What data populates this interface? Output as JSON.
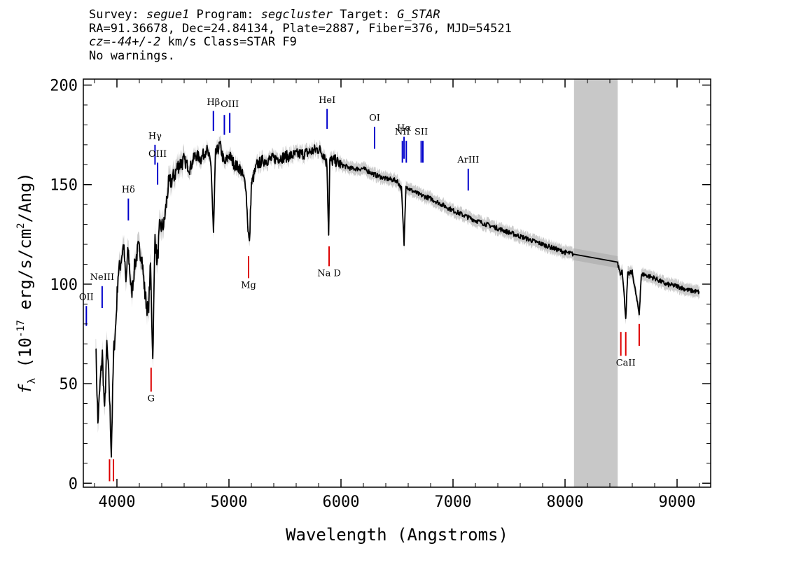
{
  "header": {
    "line1": {
      "survey_label": "Survey: ",
      "survey": "segue1",
      "program_label": " Program: ",
      "program": "segcluster",
      "target_label": " Target: ",
      "target": "G_STAR"
    },
    "line2": "RA=91.36678, Dec=24.84134, Plate=2887, Fiber=376, MJD=54521",
    "line3": {
      "cz": "cz=-44+/-2",
      "rest": " km/s Class=STAR F9"
    },
    "line4": "No warnings."
  },
  "chart_data": {
    "type": "line",
    "xlabel": "Wavelength (Angstroms)",
    "ylabel": "f_λ (10^-17 erg/s/cm^2/Ang)",
    "ylabel_parts": {
      "flam": "f",
      "lambda": "λ",
      "pre": " (10",
      "exp": "-17",
      "mid": " erg/s/cm",
      "exp2": "2",
      "post": "/Ang)"
    },
    "xlim": [
      3700,
      9300
    ],
    "ylim": [
      -2,
      203
    ],
    "xticks": [
      4000,
      5000,
      6000,
      7000,
      8000,
      9000
    ],
    "xtick_labels": [
      "4000",
      "5000",
      "6000",
      "7000",
      "8000",
      "9000"
    ],
    "yticks": [
      0,
      50,
      100,
      150,
      200
    ],
    "ytick_labels": [
      "0",
      "50",
      "100",
      "150",
      "200"
    ],
    "masked_region": {
      "x0": 8080,
      "x1": 8470,
      "color": "#c8c8c8"
    },
    "spectrum": {
      "color": "#000000",
      "error_color": "#aaaaaa",
      "x": [
        3810,
        3830,
        3850,
        3870,
        3890,
        3910,
        3930,
        3950,
        3970,
        3990,
        4010,
        4030,
        4060,
        4080,
        4100,
        4130,
        4160,
        4190,
        4220,
        4250,
        4280,
        4300,
        4320,
        4340,
        4360,
        4380,
        4420,
        4460,
        4500,
        4550,
        4600,
        4650,
        4700,
        4750,
        4800,
        4840,
        4862,
        4880,
        4920,
        4960,
        5000,
        5050,
        5100,
        5150,
        5170,
        5183,
        5200,
        5250,
        5300,
        5400,
        5500,
        5600,
        5700,
        5800,
        5850,
        5875,
        5890,
        5900,
        5950,
        6000,
        6100,
        6200,
        6300,
        6400,
        6500,
        6540,
        6563,
        6580,
        6600,
        6700,
        6800,
        6900,
        7000,
        7200,
        7400,
        7600,
        7800,
        8000,
        8080,
        8470,
        8498,
        8510,
        8542,
        8560,
        8600,
        8662,
        8680,
        8700,
        8800,
        8900,
        9000,
        9100,
        9200
      ],
      "y": [
        72,
        30,
        50,
        65,
        35,
        70,
        50,
        15,
        65,
        80,
        105,
        110,
        120,
        100,
        118,
        95,
        110,
        118,
        115,
        95,
        85,
        110,
        62,
        125,
        110,
        128,
        130,
        150,
        153,
        160,
        162,
        158,
        165,
        163,
        168,
        160,
        125,
        165,
        170,
        160,
        165,
        160,
        158,
        150,
        128,
        120,
        150,
        160,
        162,
        163,
        164,
        165,
        166,
        168,
        165,
        160,
        125,
        162,
        162,
        160,
        158,
        158,
        155,
        153,
        152,
        148,
        120,
        150,
        148,
        145,
        143,
        140,
        137,
        132,
        128,
        124,
        120,
        116,
        115,
        110,
        105,
        108,
        83,
        105,
        106,
        85,
        104,
        105,
        103,
        100,
        99,
        97,
        96
      ]
    },
    "emission_lines": [
      {
        "label": "OII",
        "x": 3727,
        "y_top": 89,
        "y_bot": 79,
        "label_y": 92
      },
      {
        "label": "NeIII",
        "x": 3868,
        "y_top": 99,
        "y_bot": 88,
        "label_y": 102
      },
      {
        "label": "Hδ",
        "x": 4102,
        "y_top": 143,
        "y_bot": 132,
        "label_y": 146
      },
      {
        "label": "Hγ",
        "x": 4340,
        "y_top": 170,
        "y_bot": 160,
        "label_y": 173
      },
      {
        "label": "OIII",
        "x": 4363,
        "y_top": 161,
        "y_bot": 150,
        "label_y": 164
      },
      {
        "label": "Hβ",
        "x": 4861,
        "y_top": 187,
        "y_bot": 177,
        "label_y": 190
      },
      {
        "label": "OIII",
        "x": 4959,
        "y_top": 185,
        "y_bot": 175,
        "label_y": null
      },
      {
        "label": "OIII",
        "x": 5007,
        "y_top": 186,
        "y_bot": 176,
        "label_y": 189
      },
      {
        "label": "HeI",
        "x": 5876,
        "y_top": 188,
        "y_bot": 178,
        "label_y": 191
      },
      {
        "label": "OI",
        "x": 6300,
        "y_top": 179,
        "y_bot": 168,
        "label_y": 182
      },
      {
        "label": "NII",
        "x": 6548,
        "y_top": 172,
        "y_bot": 161,
        "label_y": 175
      },
      {
        "label": "Hα",
        "x": 6563,
        "y_top": 174,
        "y_bot": 163,
        "label_y": 177
      },
      {
        "label": "NII",
        "x": 6583,
        "y_top": 172,
        "y_bot": 161,
        "label_y": null
      },
      {
        "label": "SII",
        "x": 6716,
        "y_top": 172,
        "y_bot": 161,
        "label_y": 175
      },
      {
        "label": "SII",
        "x": 6731,
        "y_top": 172,
        "y_bot": 161,
        "label_y": null
      },
      {
        "label": "ArIII",
        "x": 7136,
        "y_top": 158,
        "y_bot": 147,
        "label_y": 161
      }
    ],
    "absorption_lines": [
      {
        "label": "",
        "x": 3934,
        "y_top": 12,
        "y_bot": 1,
        "label_y": null
      },
      {
        "label": "",
        "x": 3969,
        "y_top": 12,
        "y_bot": 1,
        "label_y": null
      },
      {
        "label": "G",
        "x": 4305,
        "y_top": 58,
        "y_bot": 46,
        "label_y": 41
      },
      {
        "label": "Mg",
        "x": 5175,
        "y_top": 114,
        "y_bot": 103,
        "label_y": 98
      },
      {
        "label": "Na D",
        "x": 5894,
        "y_top": 119,
        "y_bot": 109,
        "label_y": 104
      },
      {
        "label": "",
        "x": 8498,
        "y_top": 76,
        "y_bot": 64,
        "label_y": null
      },
      {
        "label": "CaII",
        "x": 8542,
        "y_top": 76,
        "y_bot": 64,
        "label_y": 59
      },
      {
        "label": "",
        "x": 8662,
        "y_top": 80,
        "y_bot": 69,
        "label_y": null
      }
    ],
    "emission_color": "#0000cc",
    "absorption_color": "#dd0000"
  }
}
